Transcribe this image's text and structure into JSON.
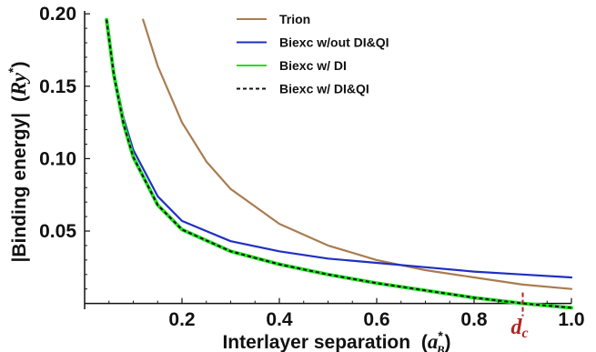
{
  "chart_data": {
    "type": "line",
    "xlabel": "Interlayer separation",
    "xlabel_unit": "(a*B)",
    "ylabel": "|Binding energy|",
    "ylabel_unit": "(Ry*)",
    "xlim": [
      0.0,
      1.0
    ],
    "ylim": [
      -0.004,
      0.202
    ],
    "x_ticks": [
      0.2,
      0.4,
      0.6,
      0.8,
      1.0
    ],
    "x_tick_labels": [
      "0.2",
      "0.4",
      "0.6",
      "0.8",
      "1.0"
    ],
    "y_ticks": [
      0.05,
      0.1,
      0.15,
      0.2
    ],
    "y_tick_labels": [
      "0.05",
      "0.10",
      "0.15",
      "0.20"
    ],
    "grid": false,
    "legend_position": "top-right",
    "annotation": {
      "text": "d",
      "subscript": "c",
      "x": 0.9,
      "color": "#b22222"
    },
    "series": [
      {
        "name": "Trion",
        "color": "#a97c50",
        "dash": "solid",
        "x": [
          0.12,
          0.15,
          0.2,
          0.25,
          0.3,
          0.4,
          0.5,
          0.6,
          0.7,
          0.8,
          0.9,
          1.0
        ],
        "y": [
          0.196,
          0.164,
          0.125,
          0.098,
          0.079,
          0.055,
          0.04,
          0.03,
          0.023,
          0.018,
          0.013,
          0.01
        ]
      },
      {
        "name": "Biexc w/out DI&QI",
        "color": "#1f2fc4",
        "dash": "solid",
        "x": [
          0.045,
          0.06,
          0.08,
          0.1,
          0.15,
          0.2,
          0.3,
          0.4,
          0.5,
          0.6,
          0.7,
          0.8,
          0.9,
          1.0
        ],
        "y": [
          0.196,
          0.16,
          0.128,
          0.106,
          0.074,
          0.057,
          0.043,
          0.036,
          0.031,
          0.028,
          0.025,
          0.022,
          0.02,
          0.018
        ]
      },
      {
        "name": "Biexc w/ DI",
        "color": "#1ee01e",
        "dash": "solid",
        "x": [
          0.045,
          0.06,
          0.08,
          0.1,
          0.15,
          0.2,
          0.3,
          0.4,
          0.5,
          0.6,
          0.7,
          0.8,
          0.9,
          1.0
        ],
        "y": [
          0.196,
          0.158,
          0.124,
          0.101,
          0.068,
          0.051,
          0.036,
          0.027,
          0.02,
          0.014,
          0.009,
          0.004,
          0.0,
          -0.003
        ]
      },
      {
        "name": "Biexc w/ DI&QI",
        "color": "#111111",
        "dash": "dashed",
        "x": [
          0.045,
          0.06,
          0.08,
          0.1,
          0.15,
          0.2,
          0.3,
          0.4,
          0.5,
          0.6,
          0.7,
          0.8,
          0.9,
          1.0
        ],
        "y": [
          0.196,
          0.158,
          0.124,
          0.101,
          0.068,
          0.051,
          0.036,
          0.027,
          0.02,
          0.014,
          0.009,
          0.004,
          0.0,
          -0.003
        ]
      }
    ]
  }
}
